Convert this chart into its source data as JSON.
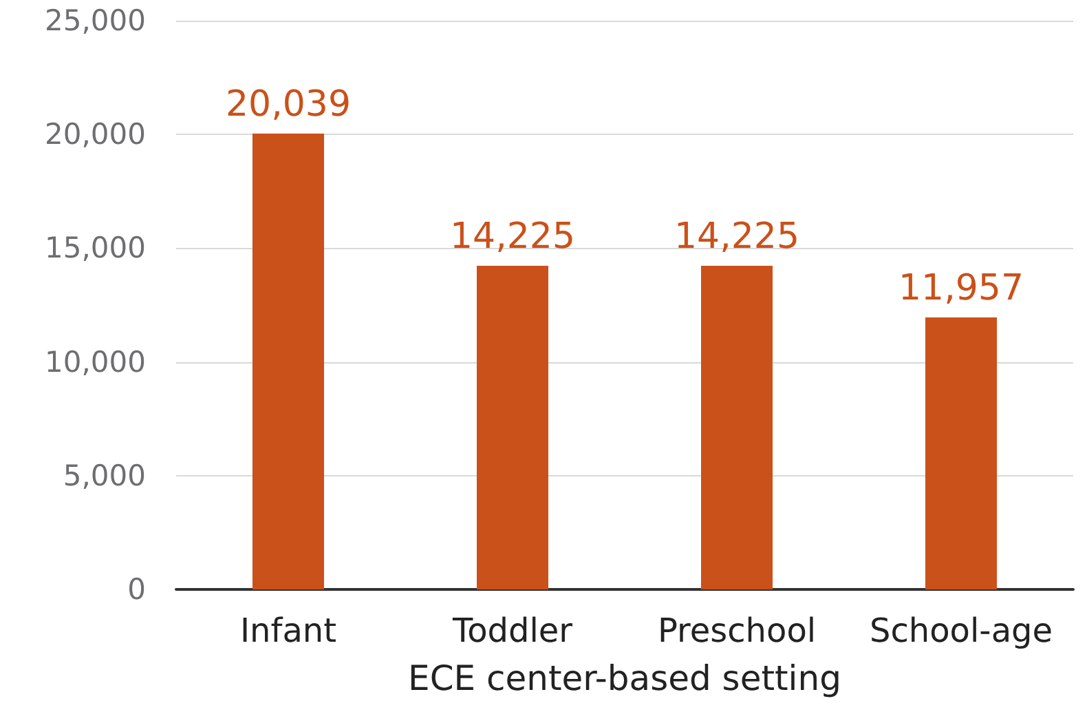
{
  "chart_data": {
    "type": "bar",
    "xlabel": "ECE center-based setting",
    "categories": [
      "Infant",
      "Toddler",
      "Preschool",
      "School-age"
    ],
    "values": [
      20039,
      14225,
      14225,
      11957
    ],
    "value_labels": [
      "20,039",
      "14,225",
      "14,225",
      "11,957"
    ],
    "color": "#ca5119",
    "ylim": [
      0,
      25000
    ],
    "yticks": [
      0,
      {
        "value": 5000,
        "label": "5,000"
      },
      {
        "value": 10000,
        "label": "10,000"
      },
      {
        "value": 15000,
        "label": "15,000"
      },
      {
        "value": 20000,
        "label": "20,000"
      },
      {
        "value": 25000,
        "label": "25,000"
      }
    ],
    "grid": "y"
  }
}
